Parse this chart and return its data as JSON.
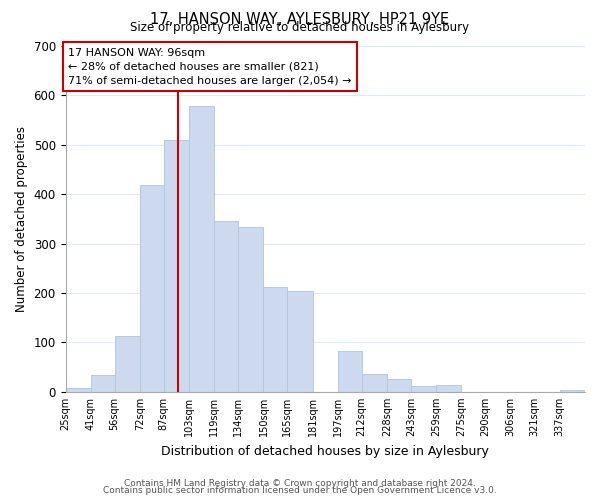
{
  "title": "17, HANSON WAY, AYLESBURY, HP21 9YE",
  "subtitle": "Size of property relative to detached houses in Aylesbury",
  "xlabel": "Distribution of detached houses by size in Aylesbury",
  "ylabel": "Number of detached properties",
  "bar_color": "#ccd9ef",
  "bar_edge_color": "#aec4e0",
  "bin_labels": [
    "25sqm",
    "41sqm",
    "56sqm",
    "72sqm",
    "87sqm",
    "103sqm",
    "119sqm",
    "134sqm",
    "150sqm",
    "165sqm",
    "181sqm",
    "197sqm",
    "212sqm",
    "228sqm",
    "243sqm",
    "259sqm",
    "275sqm",
    "290sqm",
    "306sqm",
    "321sqm",
    "337sqm"
  ],
  "bar_values": [
    8,
    35,
    113,
    418,
    510,
    578,
    346,
    333,
    212,
    204,
    0,
    83,
    37,
    26,
    12,
    13,
    0,
    0,
    0,
    0,
    3
  ],
  "bin_edges": [
    25,
    41,
    56,
    72,
    87,
    103,
    119,
    134,
    150,
    165,
    181,
    197,
    212,
    228,
    243,
    259,
    275,
    290,
    306,
    321,
    337,
    353
  ],
  "vline_x": 96,
  "vline_color": "#cc0000",
  "ylim": [
    0,
    700
  ],
  "yticks": [
    0,
    100,
    200,
    300,
    400,
    500,
    600,
    700
  ],
  "annotation_text": "17 HANSON WAY: 96sqm\n← 28% of detached houses are smaller (821)\n71% of semi-detached houses are larger (2,054) →",
  "annotation_box_color": "#ffffff",
  "annotation_box_edge": "#cc0000",
  "footer1": "Contains HM Land Registry data © Crown copyright and database right 2024.",
  "footer2": "Contains public sector information licensed under the Open Government Licence v3.0.",
  "background_color": "#ffffff",
  "grid_color": "#ddeaf7"
}
